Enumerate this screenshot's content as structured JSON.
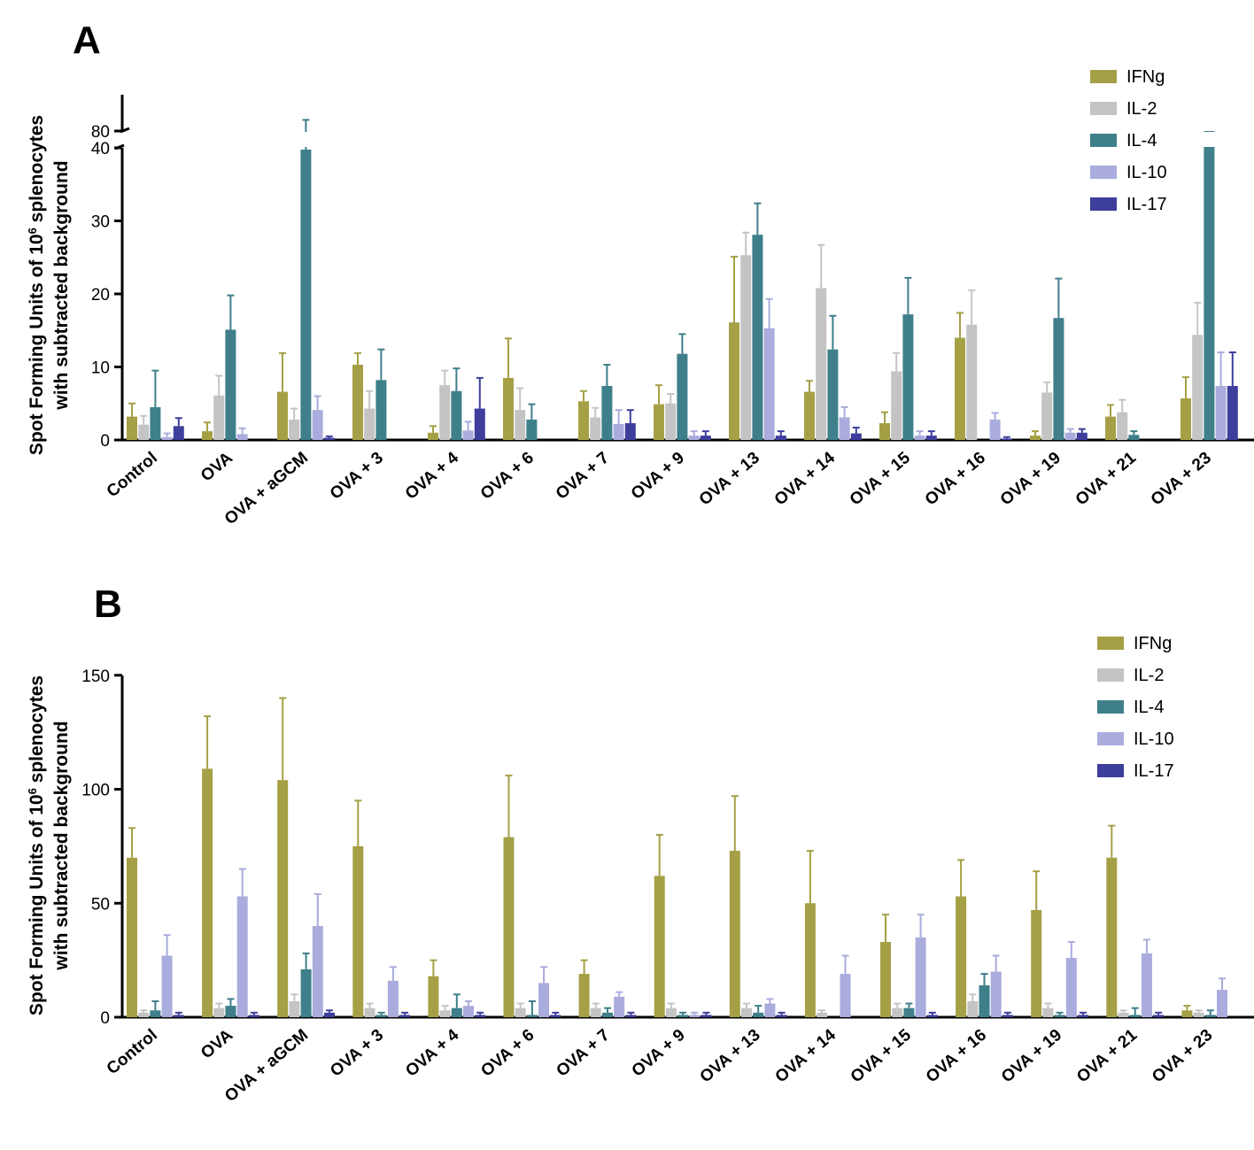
{
  "colors": {
    "IFNg": "#a5a046",
    "IL-2": "#c4c4c4",
    "IL-4": "#3e7f8a",
    "IL-10": "#a9acdc",
    "IL-17": "#3e3e9c"
  },
  "chart_data": [
    {
      "panel": "A",
      "type": "bar",
      "ylabel_line1": "Spot Forming Units of 10",
      "ylabel_sup": "6",
      "ylabel_line1_suffix": " splenocytes",
      "ylabel_line2": "with subtracted background",
      "broken_axis": true,
      "yticks": [
        0,
        10,
        20,
        30,
        40
      ],
      "ytick_labels": [
        "0",
        "10",
        "20",
        "30",
        "40"
      ],
      "upper_ticks": [
        80
      ],
      "upper_tick_labels": [
        "80"
      ],
      "legend_position": "top-right",
      "categories": [
        "Control",
        "OVA",
        "OVA + aGCM",
        "OVA + 3",
        "OVA + 4",
        "OVA + 6",
        "OVA + 7",
        "OVA + 9",
        "OVA + 13",
        "OVA + 14",
        "OVA + 15",
        "OVA + 16",
        "OVA + 19",
        "OVA + 21",
        "OVA + 23"
      ],
      "series": [
        {
          "name": "IFNg",
          "values": [
            3.2,
            1.2,
            6.6,
            10.3,
            1.0,
            8.5,
            5.3,
            4.9,
            16.1,
            6.6,
            2.3,
            14.0,
            0.6,
            3.2,
            5.7
          ],
          "errors": [
            1.8,
            1.2,
            5.3,
            1.6,
            0.9,
            5.4,
            1.4,
            2.6,
            9.0,
            1.5,
            1.5,
            3.4,
            0.6,
            1.6,
            2.9
          ]
        },
        {
          "name": "IL-2",
          "values": [
            2.1,
            6.1,
            2.8,
            4.3,
            7.5,
            4.1,
            3.1,
            5.0,
            25.3,
            20.8,
            9.4,
            15.8,
            6.5,
            3.8,
            14.4
          ],
          "errors": [
            1.2,
            2.7,
            1.5,
            2.4,
            2.0,
            3.0,
            1.3,
            1.3,
            3.1,
            5.9,
            2.5,
            4.7,
            1.4,
            1.7,
            4.4
          ]
        },
        {
          "name": "IL-4",
          "values": [
            4.5,
            15.1,
            75.0,
            8.2,
            6.7,
            2.8,
            7.4,
            11.8,
            28.1,
            12.4,
            17.2,
            0,
            16.7,
            0.7,
            80.0
          ],
          "errors": [
            5.0,
            4.7,
            8.0,
            4.2,
            3.1,
            2.1,
            2.9,
            2.7,
            4.3,
            4.6,
            5.0,
            0,
            5.4,
            0.5,
            0
          ]
        },
        {
          "name": "IL-10",
          "values": [
            0.4,
            0.8,
            4.1,
            0,
            1.3,
            0,
            2.2,
            0.6,
            15.3,
            3.1,
            0.6,
            2.8,
            1.0,
            0,
            7.4
          ],
          "errors": [
            0.5,
            0.8,
            1.9,
            0,
            1.2,
            0,
            1.9,
            0.6,
            4.0,
            1.4,
            0.6,
            0.9,
            0.5,
            0,
            4.6
          ]
        },
        {
          "name": "IL-17",
          "values": [
            1.9,
            0,
            0.3,
            0,
            4.3,
            0,
            2.3,
            0.6,
            0.6,
            0.9,
            0.6,
            0.2,
            1.0,
            0,
            7.4
          ],
          "errors": [
            1.1,
            0,
            0.2,
            0,
            4.2,
            0,
            1.8,
            0.6,
            0.6,
            0.8,
            0.6,
            0.2,
            0.5,
            0,
            4.6
          ]
        }
      ]
    },
    {
      "panel": "B",
      "type": "bar",
      "ylabel_line1": "Spot Forming Units of 10",
      "ylabel_sup": "6",
      "ylabel_line1_suffix": " splenocytes",
      "ylabel_line2": "with subtracted background",
      "ylim": [
        0,
        150
      ],
      "yticks": [
        0,
        50,
        100,
        150
      ],
      "ytick_labels": [
        "0",
        "50",
        "100",
        "150"
      ],
      "legend_position": "top-right",
      "categories": [
        "Control",
        "OVA",
        "OVA + aGCM",
        "OVA + 3",
        "OVA + 4",
        "OVA + 6",
        "OVA + 7",
        "OVA + 9",
        "OVA + 13",
        "OVA + 14",
        "OVA + 15",
        "OVA + 16",
        "OVA + 19",
        "OVA + 21",
        "OVA + 23"
      ],
      "series": [
        {
          "name": "IFNg",
          "values": [
            70,
            109,
            104,
            75,
            18,
            79,
            19,
            62,
            73,
            50,
            33,
            53,
            47,
            70,
            3
          ],
          "errors": [
            13,
            23,
            36,
            20,
            7,
            27,
            6,
            18,
            24,
            23,
            12,
            16,
            17,
            14,
            2
          ]
        },
        {
          "name": "IL-2",
          "values": [
            2,
            4,
            7,
            4,
            3,
            4,
            4,
            4,
            4,
            2,
            4,
            7,
            4,
            2,
            2
          ],
          "errors": [
            1,
            2,
            3,
            2,
            2,
            2,
            2,
            2,
            2,
            1,
            2,
            3,
            2,
            1,
            1
          ]
        },
        {
          "name": "IL-4",
          "values": [
            3,
            5,
            21,
            1,
            4,
            1,
            2,
            1,
            2,
            0,
            4,
            14,
            1,
            1,
            1
          ],
          "errors": [
            4,
            3,
            7,
            1,
            6,
            6,
            2,
            1,
            3,
            0,
            2,
            5,
            1,
            3,
            2
          ]
        },
        {
          "name": "IL-10",
          "values": [
            27,
            53,
            40,
            16,
            5,
            15,
            9,
            1,
            6,
            19,
            35,
            20,
            26,
            28,
            12
          ],
          "errors": [
            9,
            12,
            14,
            6,
            2,
            7,
            2,
            1,
            2,
            8,
            10,
            7,
            7,
            6,
            5
          ]
        },
        {
          "name": "IL-17",
          "values": [
            1,
            1,
            2,
            1,
            1,
            1,
            1,
            1,
            1,
            0,
            1,
            1,
            1,
            1,
            0
          ],
          "errors": [
            1,
            1,
            1,
            1,
            1,
            1,
            1,
            1,
            1,
            0,
            1,
            1,
            1,
            1,
            0
          ]
        }
      ]
    }
  ]
}
